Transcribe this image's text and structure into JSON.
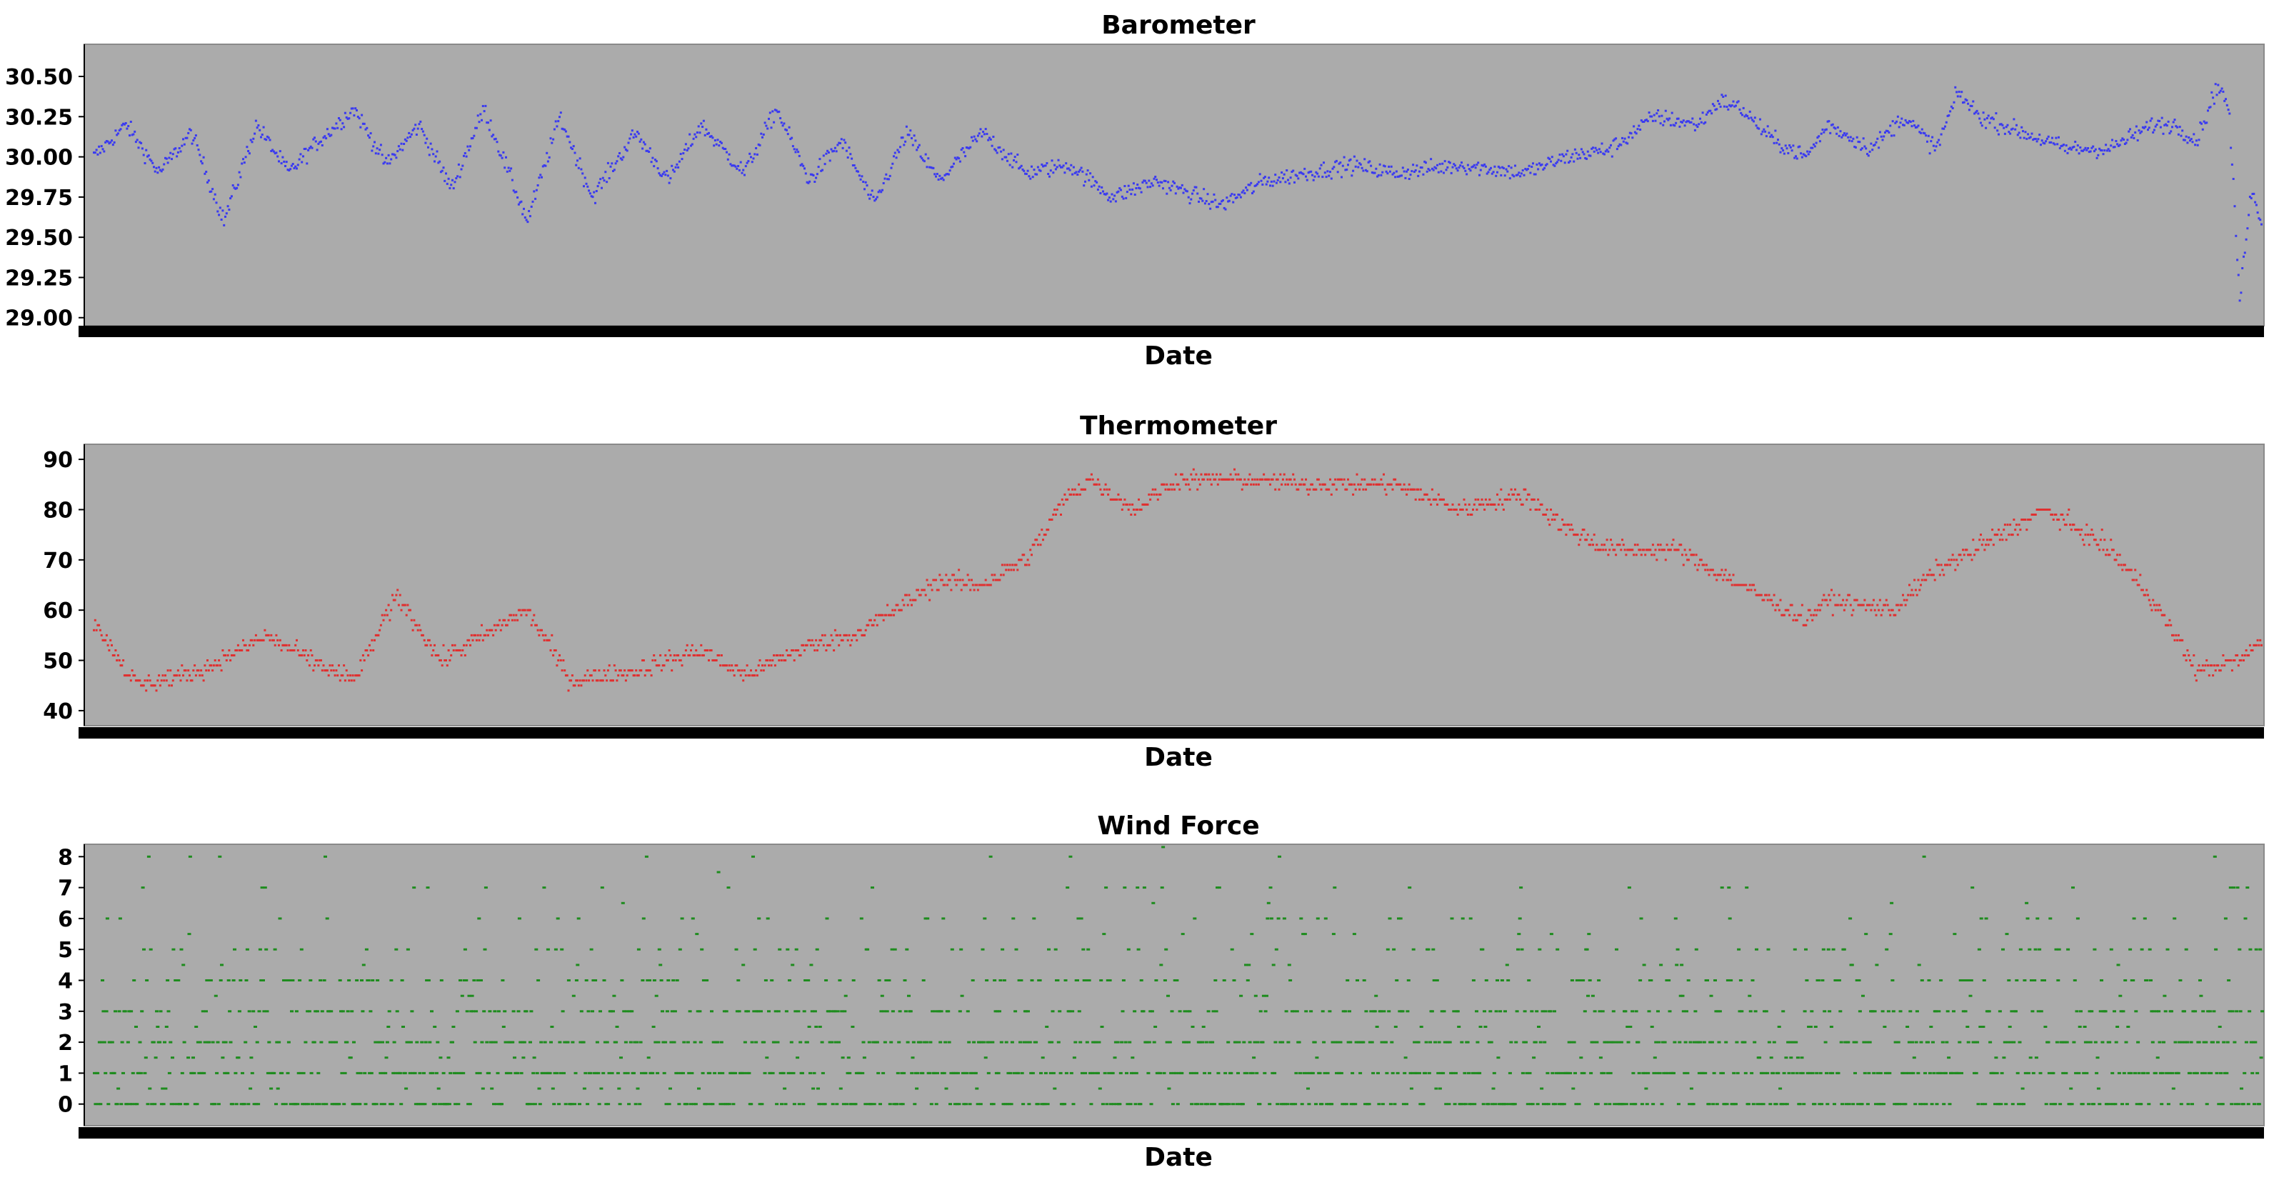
{
  "chart_data": [
    {
      "type": "scatter",
      "title": "Barometer",
      "xlabel": "Date",
      "ylabel": "",
      "ylim": [
        28.95,
        30.7
      ],
      "yticks": [
        "29.00",
        "29.25",
        "29.50",
        "29.75",
        "30.00",
        "30.25",
        "30.50"
      ],
      "point_color": "#3a3af0",
      "background": "#ababab",
      "grid": false,
      "n_points": 1700,
      "x_range": [
        0,
        1
      ],
      "series": [
        {
          "name": "",
          "trend": [
            [
              0,
              30.0
            ],
            [
              0.015,
              30.2
            ],
            [
              0.03,
              29.9
            ],
            [
              0.045,
              30.15
            ],
            [
              0.06,
              29.6
            ],
            [
              0.075,
              30.2
            ],
            [
              0.09,
              29.9
            ],
            [
              0.1,
              30.05
            ],
            [
              0.12,
              30.3
            ],
            [
              0.135,
              29.95
            ],
            [
              0.15,
              30.2
            ],
            [
              0.165,
              29.8
            ],
            [
              0.18,
              30.3
            ],
            [
              0.2,
              29.6
            ],
            [
              0.215,
              30.25
            ],
            [
              0.23,
              29.75
            ],
            [
              0.25,
              30.15
            ],
            [
              0.265,
              29.85
            ],
            [
              0.28,
              30.2
            ],
            [
              0.3,
              29.9
            ],
            [
              0.315,
              30.3
            ],
            [
              0.33,
              29.85
            ],
            [
              0.345,
              30.1
            ],
            [
              0.36,
              29.7
            ],
            [
              0.375,
              30.15
            ],
            [
              0.39,
              29.85
            ],
            [
              0.41,
              30.15
            ],
            [
              0.43,
              29.9
            ],
            [
              0.45,
              29.95
            ],
            [
              0.47,
              29.75
            ],
            [
              0.49,
              29.85
            ],
            [
              0.51,
              29.75
            ],
            [
              0.52,
              29.7
            ],
            [
              0.54,
              29.85
            ],
            [
              0.56,
              29.9
            ],
            [
              0.58,
              29.95
            ],
            [
              0.6,
              29.9
            ],
            [
              0.63,
              29.95
            ],
            [
              0.66,
              29.9
            ],
            [
              0.68,
              30.0
            ],
            [
              0.7,
              30.05
            ],
            [
              0.72,
              30.25
            ],
            [
              0.74,
              30.2
            ],
            [
              0.75,
              30.35
            ],
            [
              0.76,
              30.3
            ],
            [
              0.775,
              30.1
            ],
            [
              0.79,
              30.0
            ],
            [
              0.8,
              30.2
            ],
            [
              0.82,
              30.05
            ],
            [
              0.835,
              30.25
            ],
            [
              0.85,
              30.05
            ],
            [
              0.86,
              30.4
            ],
            [
              0.87,
              30.25
            ],
            [
              0.89,
              30.15
            ],
            [
              0.91,
              30.05
            ],
            [
              0.93,
              30.05
            ],
            [
              0.95,
              30.2
            ],
            [
              0.96,
              30.2
            ],
            [
              0.97,
              30.1
            ],
            [
              0.98,
              30.45
            ],
            [
              0.985,
              30.3
            ],
            [
              0.99,
              29.1
            ],
            [
              0.995,
              29.8
            ],
            [
              1.0,
              29.6
            ]
          ],
          "noise": 0.09
        }
      ]
    },
    {
      "type": "scatter",
      "title": "Thermometer",
      "xlabel": "Date",
      "ylabel": "",
      "ylim": [
        37,
        93
      ],
      "yticks": [
        "40",
        "50",
        "60",
        "70",
        "80",
        "90"
      ],
      "point_color": "#e03030",
      "background": "#ababab",
      "grid": false,
      "n_points": 1700,
      "x_range": [
        0,
        1
      ],
      "series": [
        {
          "name": "",
          "trend": [
            [
              0,
              58
            ],
            [
              0.02,
              45
            ],
            [
              0.05,
              48
            ],
            [
              0.08,
              55
            ],
            [
              0.1,
              50
            ],
            [
              0.12,
              46
            ],
            [
              0.14,
              63
            ],
            [
              0.16,
              50
            ],
            [
              0.18,
              55
            ],
            [
              0.2,
              60
            ],
            [
              0.22,
              46
            ],
            [
              0.25,
              48
            ],
            [
              0.28,
              52
            ],
            [
              0.3,
              47
            ],
            [
              0.33,
              53
            ],
            [
              0.35,
              55
            ],
            [
              0.37,
              60
            ],
            [
              0.39,
              66
            ],
            [
              0.41,
              65
            ],
            [
              0.43,
              70
            ],
            [
              0.45,
              83
            ],
            [
              0.46,
              86
            ],
            [
              0.48,
              80
            ],
            [
              0.5,
              86
            ],
            [
              0.53,
              86
            ],
            [
              0.56,
              85
            ],
            [
              0.6,
              85
            ],
            [
              0.63,
              80
            ],
            [
              0.66,
              83
            ],
            [
              0.68,
              76
            ],
            [
              0.7,
              72
            ],
            [
              0.73,
              72
            ],
            [
              0.76,
              65
            ],
            [
              0.79,
              58
            ],
            [
              0.8,
              62
            ],
            [
              0.83,
              60
            ],
            [
              0.85,
              68
            ],
            [
              0.88,
              75
            ],
            [
              0.9,
              80
            ],
            [
              0.93,
              72
            ],
            [
              0.95,
              62
            ],
            [
              0.97,
              48
            ],
            [
              0.99,
              50
            ],
            [
              1.0,
              54
            ]
          ],
          "noise": 3
        }
      ]
    },
    {
      "type": "scatter",
      "title": "Wind Force",
      "xlabel": "Date",
      "ylabel": "",
      "ylim": [
        -0.7,
        8.4
      ],
      "yticks": [
        "0",
        "1",
        "2",
        "3",
        "4",
        "5",
        "6",
        "7",
        "8"
      ],
      "point_color": "#1e8c1e",
      "background": "#ababab",
      "grid": false,
      "n_points": 2200,
      "x_range": [
        0,
        1
      ],
      "series": [
        {
          "name": "",
          "levels": [
            0,
            1,
            2,
            3,
            4,
            5,
            6,
            7,
            8
          ],
          "dominant_levels": [
            0,
            1,
            2,
            3
          ],
          "max_level": 8
        }
      ]
    }
  ]
}
